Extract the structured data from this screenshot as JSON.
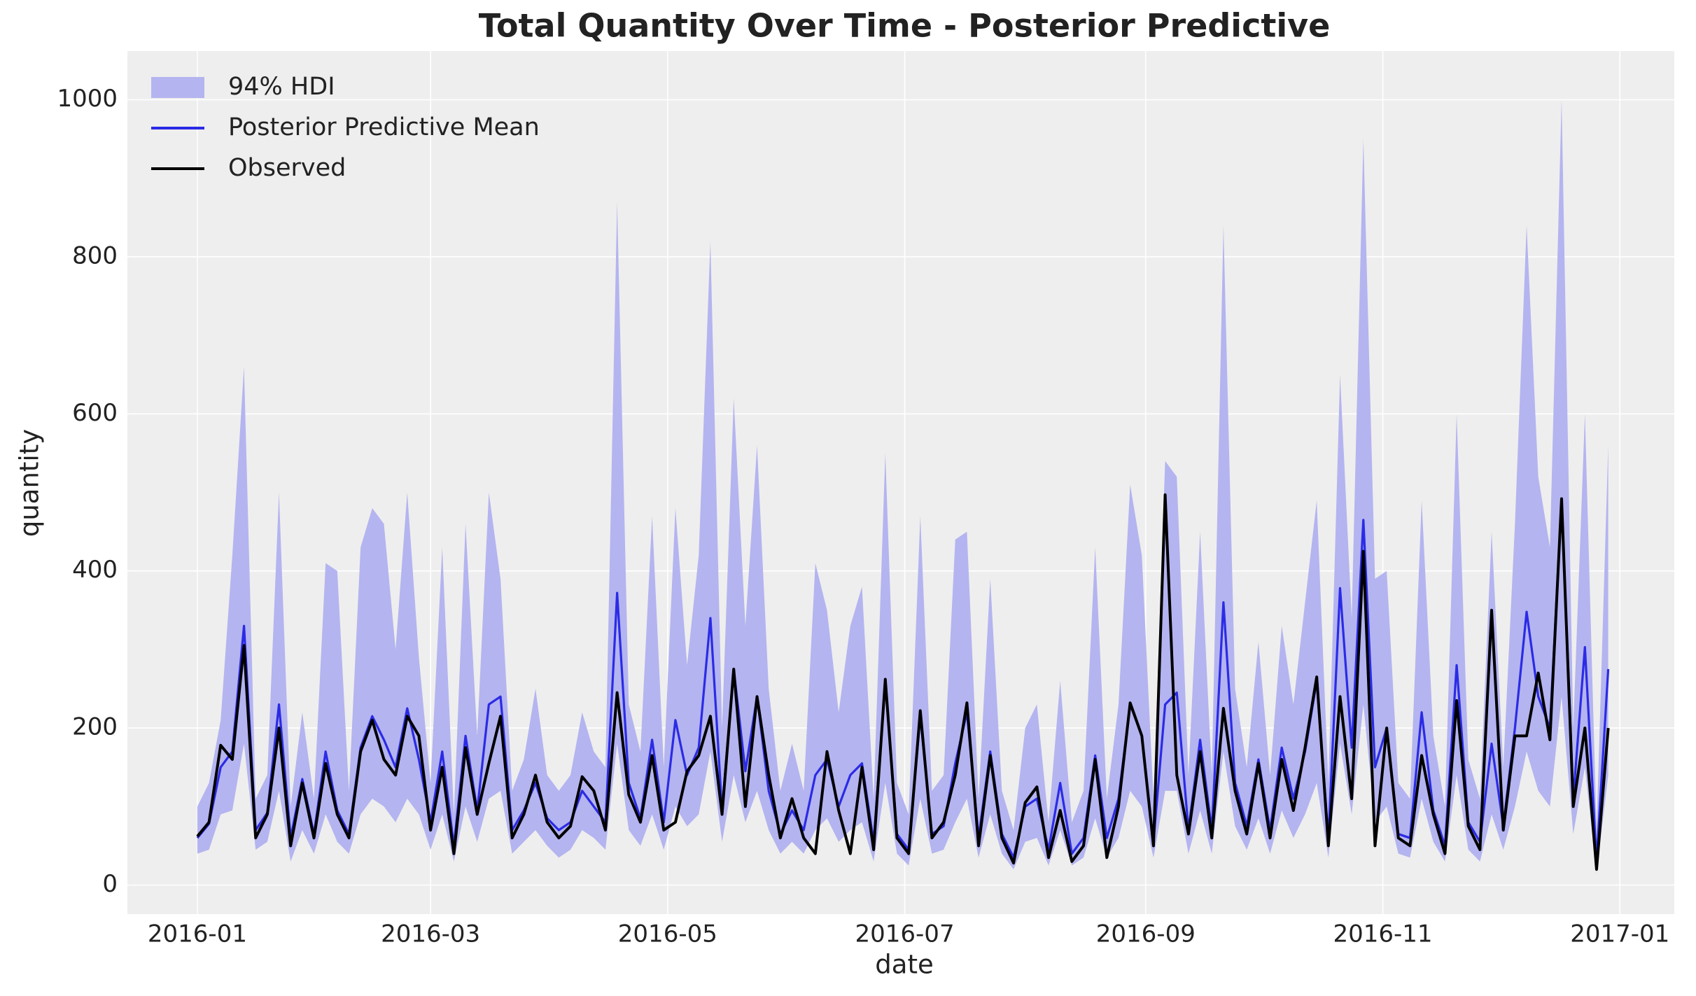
{
  "chart_data": {
    "type": "line",
    "title": "Total Quantity Over Time - Posterior Predictive",
    "x_label": "date",
    "y_label": "quantity",
    "x": [
      "2016-01-01",
      "2016-01-04",
      "2016-01-07",
      "2016-01-10",
      "2016-01-13",
      "2016-01-16",
      "2016-01-19",
      "2016-01-22",
      "2016-01-25",
      "2016-01-28",
      "2016-01-31",
      "2016-02-03",
      "2016-02-06",
      "2016-02-09",
      "2016-02-12",
      "2016-02-15",
      "2016-02-18",
      "2016-02-21",
      "2016-02-24",
      "2016-02-27",
      "2016-03-01",
      "2016-03-04",
      "2016-03-07",
      "2016-03-10",
      "2016-03-13",
      "2016-03-16",
      "2016-03-19",
      "2016-03-22",
      "2016-03-25",
      "2016-03-28",
      "2016-03-31",
      "2016-04-03",
      "2016-04-06",
      "2016-04-09",
      "2016-04-12",
      "2016-04-15",
      "2016-04-18",
      "2016-04-21",
      "2016-04-24",
      "2016-04-27",
      "2016-04-30",
      "2016-05-03",
      "2016-05-06",
      "2016-05-09",
      "2016-05-12",
      "2016-05-15",
      "2016-05-18",
      "2016-05-21",
      "2016-05-24",
      "2016-05-27",
      "2016-05-30",
      "2016-06-02",
      "2016-06-05",
      "2016-06-08",
      "2016-06-11",
      "2016-06-14",
      "2016-06-17",
      "2016-06-20",
      "2016-06-23",
      "2016-06-26",
      "2016-06-29",
      "2016-07-02",
      "2016-07-05",
      "2016-07-08",
      "2016-07-11",
      "2016-07-14",
      "2016-07-17",
      "2016-07-20",
      "2016-07-23",
      "2016-07-26",
      "2016-07-29",
      "2016-08-01",
      "2016-08-04",
      "2016-08-07",
      "2016-08-10",
      "2016-08-13",
      "2016-08-16",
      "2016-08-19",
      "2016-08-22",
      "2016-08-25",
      "2016-08-28",
      "2016-08-31",
      "2016-09-03",
      "2016-09-06",
      "2016-09-09",
      "2016-09-12",
      "2016-09-15",
      "2016-09-18",
      "2016-09-21",
      "2016-09-24",
      "2016-09-27",
      "2016-09-30",
      "2016-10-03",
      "2016-10-06",
      "2016-10-09",
      "2016-10-12",
      "2016-10-15",
      "2016-10-18",
      "2016-10-21",
      "2016-10-24",
      "2016-10-27",
      "2016-10-30",
      "2016-11-02",
      "2016-11-05",
      "2016-11-08",
      "2016-11-11",
      "2016-11-14",
      "2016-11-17",
      "2016-11-20",
      "2016-11-23",
      "2016-11-26",
      "2016-11-29",
      "2016-12-02",
      "2016-12-05",
      "2016-12-08",
      "2016-12-11",
      "2016-12-14",
      "2016-12-17",
      "2016-12-20",
      "2016-12-23",
      "2016-12-26",
      "2016-12-29"
    ],
    "band": {
      "name": "94% HDI",
      "color": "#b4b4f0",
      "lower": [
        40,
        45,
        90,
        95,
        180,
        45,
        55,
        120,
        30,
        70,
        40,
        90,
        55,
        40,
        90,
        110,
        100,
        80,
        110,
        90,
        45,
        90,
        30,
        100,
        55,
        110,
        120,
        40,
        55,
        70,
        50,
        35,
        45,
        70,
        60,
        45,
        180,
        70,
        50,
        90,
        45,
        100,
        75,
        90,
        170,
        55,
        140,
        80,
        120,
        70,
        40,
        55,
        40,
        70,
        85,
        55,
        70,
        80,
        30,
        130,
        40,
        25,
        110,
        40,
        45,
        80,
        110,
        35,
        90,
        40,
        20,
        55,
        60,
        25,
        70,
        25,
        35,
        85,
        35,
        60,
        120,
        100,
        35,
        120,
        120,
        40,
        95,
        40,
        170,
        75,
        45,
        85,
        40,
        95,
        60,
        90,
        130,
        35,
        180,
        90,
        230,
        80,
        100,
        40,
        35,
        110,
        55,
        30,
        140,
        45,
        30,
        90,
        45,
        100,
        170,
        120,
        100,
        240,
        65,
        150,
        15,
        140
      ],
      "upper": [
        100,
        130,
        210,
        420,
        660,
        110,
        140,
        500,
        100,
        220,
        110,
        410,
        400,
        120,
        430,
        480,
        460,
        300,
        500,
        290,
        130,
        430,
        90,
        460,
        190,
        500,
        390,
        120,
        160,
        250,
        140,
        120,
        140,
        220,
        170,
        150,
        870,
        230,
        170,
        470,
        150,
        480,
        280,
        420,
        820,
        200,
        620,
        330,
        560,
        250,
        120,
        180,
        120,
        410,
        350,
        220,
        330,
        380,
        110,
        550,
        130,
        90,
        470,
        120,
        140,
        440,
        450,
        110,
        390,
        120,
        70,
        200,
        230,
        80,
        260,
        80,
        120,
        430,
        110,
        230,
        510,
        420,
        110,
        540,
        520,
        140,
        450,
        140,
        840,
        250,
        150,
        310,
        140,
        330,
        230,
        360,
        490,
        130,
        650,
        340,
        950,
        390,
        400,
        130,
        110,
        490,
        190,
        100,
        600,
        160,
        110,
        450,
        150,
        460,
        840,
        520,
        430,
        1000,
        200,
        600,
        70,
        560
      ]
    },
    "series": [
      {
        "name": "Posterior Predictive Mean",
        "color": "#2b2be6",
        "values": [
          60,
          78,
          150,
          170,
          330,
          70,
          92,
          230,
          60,
          135,
          65,
          170,
          95,
          65,
          175,
          215,
          185,
          150,
          225,
          160,
          80,
          170,
          50,
          190,
          95,
          230,
          240,
          70,
          95,
          130,
          85,
          70,
          80,
          120,
          100,
          80,
          372,
          130,
          85,
          185,
          80,
          210,
          140,
          175,
          340,
          95,
          275,
          145,
          240,
          120,
          65,
          95,
          70,
          140,
          160,
          100,
          140,
          155,
          55,
          258,
          65,
          45,
          215,
          65,
          75,
          155,
          220,
          60,
          170,
          65,
          35,
          100,
          110,
          45,
          130,
          40,
          60,
          165,
          60,
          110,
          230,
          190,
          55,
          230,
          245,
          70,
          185,
          70,
          360,
          130,
          75,
          160,
          70,
          175,
          110,
          170,
          260,
          60,
          378,
          175,
          465,
          150,
          200,
          65,
          60,
          220,
          95,
          50,
          280,
          80,
          55,
          180,
          75,
          200,
          348,
          240,
          200,
          490,
          110,
          303,
          30,
          275
        ]
      },
      {
        "name": "Observed",
        "color": "#000000",
        "values": [
          62,
          80,
          178,
          160,
          305,
          60,
          90,
          200,
          50,
          130,
          60,
          155,
          90,
          60,
          170,
          210,
          160,
          140,
          215,
          190,
          70,
          150,
          40,
          175,
          90,
          155,
          215,
          60,
          90,
          140,
          80,
          60,
          75,
          138,
          120,
          70,
          245,
          115,
          80,
          165,
          70,
          80,
          145,
          165,
          215,
          90,
          275,
          100,
          240,
          140,
          60,
          110,
          60,
          40,
          170,
          95,
          40,
          150,
          45,
          262,
          60,
          40,
          222,
          60,
          80,
          140,
          232,
          50,
          165,
          60,
          28,
          105,
          125,
          35,
          95,
          30,
          50,
          160,
          35,
          100,
          232,
          190,
          50,
          497,
          140,
          65,
          170,
          60,
          225,
          120,
          65,
          155,
          60,
          160,
          95,
          175,
          265,
          50,
          240,
          110,
          425,
          50,
          200,
          60,
          50,
          165,
          90,
          40,
          235,
          75,
          45,
          350,
          70,
          190,
          190,
          270,
          185,
          492,
          100,
          200,
          20,
          200
        ]
      }
    ],
    "xlim": [
      "2015-12-14",
      "2017-01-15"
    ],
    "xticks": [
      {
        "value": "2016-01-01",
        "label": "2016-01"
      },
      {
        "value": "2016-03-01",
        "label": "2016-03"
      },
      {
        "value": "2016-05-01",
        "label": "2016-05"
      },
      {
        "value": "2016-07-01",
        "label": "2016-07"
      },
      {
        "value": "2016-09-01",
        "label": "2016-09"
      },
      {
        "value": "2016-11-01",
        "label": "2016-11"
      },
      {
        "value": "2017-01-01",
        "label": "2017-01"
      }
    ],
    "ylim": [
      -37,
      1062
    ],
    "yticks": [
      0,
      200,
      400,
      600,
      800,
      1000
    ],
    "grid": true,
    "legend": "upper left"
  }
}
